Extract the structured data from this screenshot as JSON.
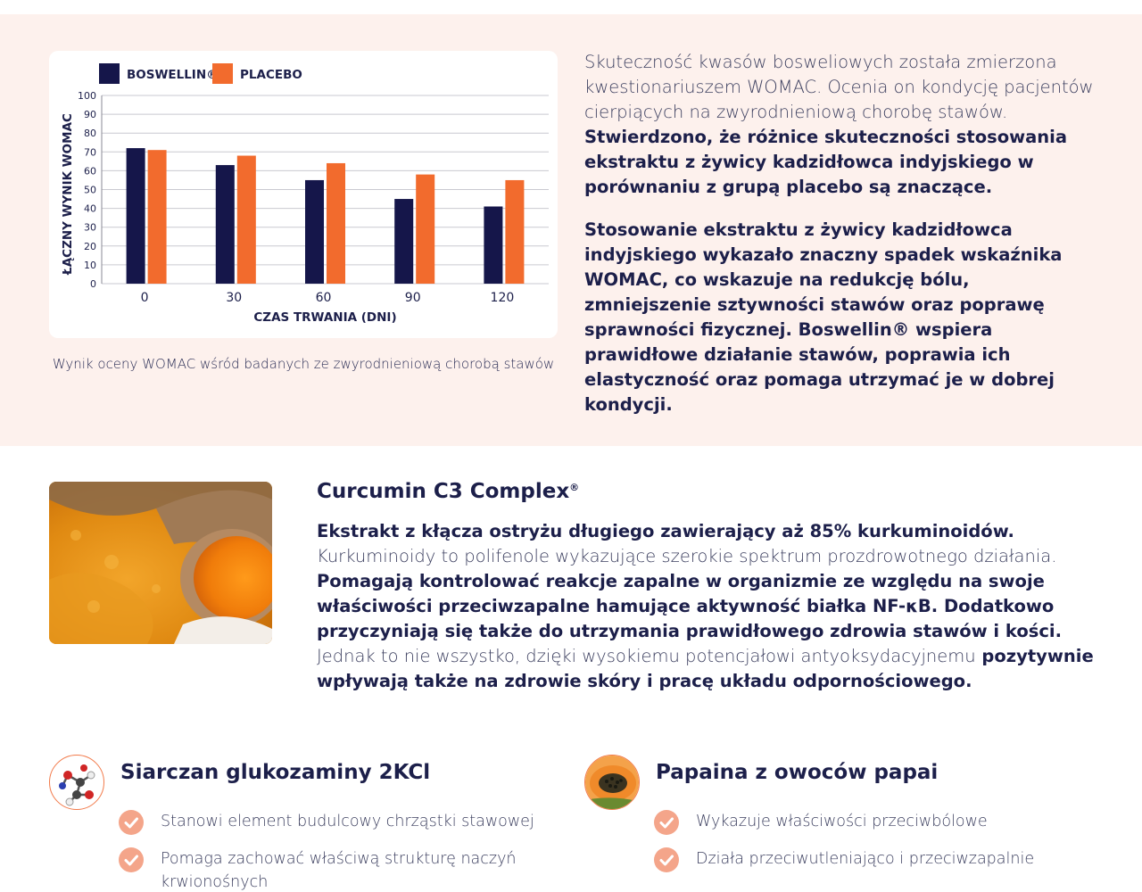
{
  "chart_data": {
    "type": "bar",
    "categories": [
      "0",
      "30",
      "60",
      "90",
      "120"
    ],
    "series": [
      {
        "name": "BOSWELLIN®",
        "values": [
          72,
          63,
          55,
          45,
          41
        ],
        "color": "#15164a"
      },
      {
        "name": "PLACEBO",
        "values": [
          71,
          68,
          64,
          58,
          55
        ],
        "color": "#f26b2d"
      }
    ],
    "xlabel": "CZAS TRWANIA (DNI)",
    "ylabel": "ŁĄCZNY WYNIK WOMAC",
    "ylim": [
      0,
      100
    ],
    "yticks": [
      "0",
      "10",
      "20",
      "30",
      "40",
      "50",
      "60",
      "70",
      "80",
      "90",
      "100"
    ],
    "grid": true,
    "legend": "top-left"
  },
  "chart_caption": "Wynik oceny WOMAC wśród badanych ze zwyrodnieniową chorobą stawów",
  "womac": {
    "p1_light": "Skuteczność kwasów bosweliowych została zmierzona kwestionariuszem WOMAC. Ocenia on kondycję pacjentów cierpiących na zwyrodnieniową chorobę stawów.",
    "p1_bold": " Stwierdzono, że różnice skuteczności stosowania ekstraktu z żywicy kadzidłowca indyjskiego w porównaniu z grupą placebo są znaczące.",
    "p2_bold": "Stosowanie ekstraktu z żywicy kadzidłowca indyjskiego wykazało znaczny spadek wskaźnika WOMAC, co wskazuje na redukcję bólu, zmniejszenie sztywności stawów oraz poprawę sprawności fizycznej. Boswellin® wspiera prawidłowe działanie stawów, poprawia ich elastyczność oraz pomaga utrzymać je w dobrej kondycji."
  },
  "curcumin": {
    "title": "Curcumin C3 Complex",
    "title_mark": "®",
    "b1": "Ekstrakt z kłącza ostryżu długiego zawierający aż 85% kurkuminoidów.",
    "l1": " Kurkuminoidy to polifenole wykazujące szerokie spektrum prozdrowotnego działania.",
    "b2": " Pomagają kontrolować reakcje zapalne w organizmie ze względu na swoje właściwości przeciwzapalne hamujące aktywność białka NF-κB. Dodatkowo przyczyniają się także do utrzymania prawidłowego zdrowia stawów i kości.",
    "l2": " Jednak to nie wszystko, dzięki wysokiemu potencjałowi antyoksydacyjnemu",
    "b3": " pozytywnie wpływają także na zdrowie skóry i pracę układu odpornościowego."
  },
  "features": {
    "glucosamine": {
      "title": "Siarczan glukozaminy 2KCl",
      "icon": "molecule-icon",
      "items": [
        "Stanowi element budulcowy chrząstki stawowej",
        "Pomaga zachować właściwą strukturę naczyń krwionośnych"
      ]
    },
    "papain": {
      "title": "Papaina z owoców papai",
      "icon": "papaya-icon",
      "items": [
        "Wykazuje właściwości przeciwbólowe",
        "Działa przeciwutleniająco i przeciwzapalnie"
      ]
    }
  },
  "colors": {
    "navy": "#15164a",
    "orange": "#f26b2d",
    "peach_bg": "#fdf1ed",
    "check": "#f4a58a"
  }
}
